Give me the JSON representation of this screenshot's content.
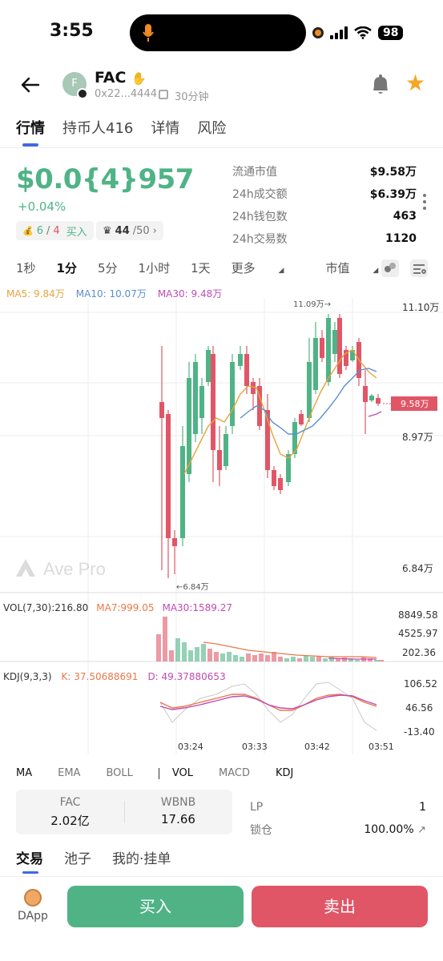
{
  "status": {
    "time": "3:55",
    "battery": "98"
  },
  "token": {
    "name": "FAC",
    "avatar_letter": "F",
    "address": "0x22...4444",
    "age": "30分钟"
  },
  "tabs": [
    {
      "label": "行情"
    },
    {
      "label": "持币人416"
    },
    {
      "label": "详情"
    },
    {
      "label": "风险"
    }
  ],
  "price": {
    "value": "$0.0{4}957",
    "change": "+0.04%"
  },
  "badges": {
    "buy_sell_a": "6",
    "buy_sell_b": "4",
    "buy_label": "买入",
    "crown_a": "44",
    "crown_b": "/50"
  },
  "stats": [
    {
      "k": "流通市值",
      "v": "$9.58万"
    },
    {
      "k": "24h成交额",
      "v": "$6.39万"
    },
    {
      "k": "24h钱包数",
      "v": "463"
    },
    {
      "k": "24h交易数",
      "v": "1120"
    }
  ],
  "intervals": [
    "1秒",
    "1分",
    "5分",
    "1小时",
    "1天",
    "更多",
    "市值"
  ],
  "ma_legend": {
    "ma5": "MA5: 9.84万",
    "ma10": "MA10: 10.07万",
    "ma30": "MA30: 9.48万"
  },
  "price_axis": {
    "top": "11.10万",
    "mid": "8.97万",
    "bottom": "6.84万",
    "current": "9.58万",
    "high_label": "11.09万→",
    "low_label": "←6.84万"
  },
  "watermark": "Ave Pro",
  "vol_legend": {
    "main": "VOL(7,30):216.80",
    "ma7": "MA7:999.05",
    "ma30": "MA30:1589.27"
  },
  "vol_axis": [
    "8849.58",
    "4525.97",
    "202.36"
  ],
  "kdj_legend": {
    "main": "KDJ(9,3,3)",
    "k": "K:  37.50688691",
    "d": "D:  49.37880653"
  },
  "kdj_axis": [
    "106.52",
    "46.56",
    "-13.40"
  ],
  "time_axis": [
    "03:24",
    "03:33",
    "03:42",
    "03:51"
  ],
  "indicator_tabs": [
    "MA",
    "EMA",
    "BOLL",
    "VOL",
    "MACD",
    "KDJ"
  ],
  "pair": {
    "left_k": "FAC",
    "left_v": "2.02亿",
    "right_k": "WBNB",
    "right_v": "17.66"
  },
  "lp": {
    "k": "LP",
    "v": "1",
    "lock_k": "锁仓",
    "lock_v": "100.00%"
  },
  "bottom_tabs": [
    "交易",
    "池子",
    "我的·挂单"
  ],
  "dapp": "DApp",
  "buy": "买入",
  "sell": "卖出",
  "colors": {
    "up": "#4fb386",
    "down": "#e05667",
    "ma5": "#e8a33c",
    "ma10": "#5b8fd0",
    "ma30": "#c04bb5"
  }
}
